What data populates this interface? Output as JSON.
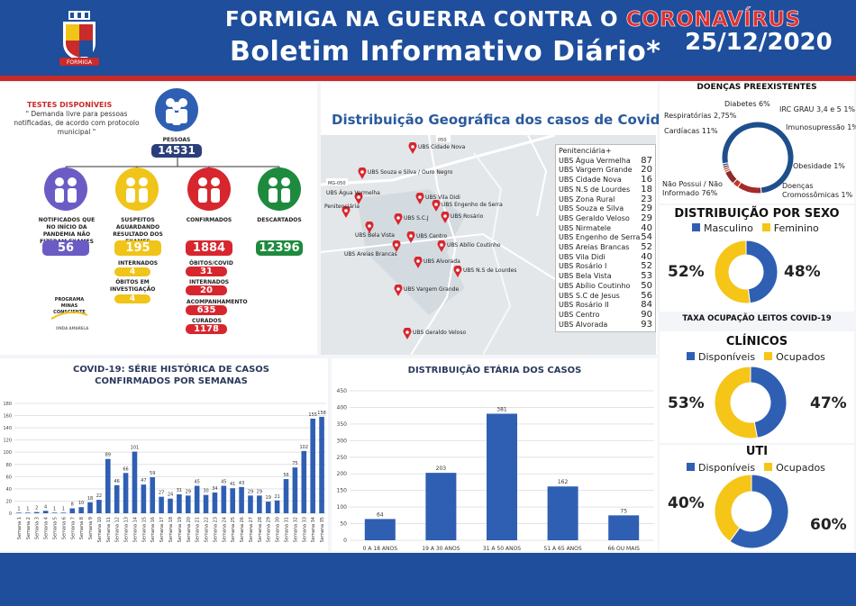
{
  "header": {
    "title_part1": "FORMIGA NA GUERRA CONTRA O ",
    "title_part2": "CORONAVÍRUS",
    "subtitle": "Boletim Informativo Diário*",
    "date": "25/12/2020",
    "crest_text": "FORMIGA"
  },
  "tests": {
    "title": "TESTES DISPONÍVEIS",
    "description": "\" Demanda livre para pessoas notificadas, de acordo com protocolo municipal \""
  },
  "notified": {
    "label": "PESSOAS NOTIFICADAS",
    "value": "14531"
  },
  "groups": [
    {
      "label": "NOTIFICADOS QUE NO INÍCIO DA PANDEMIA NÃO FIZERAM EXAMES",
      "value": "56",
      "color": "#6a5cc4"
    },
    {
      "label": "SUSPEITOS AGUARDANDO RESULTADO DOS EXAMES",
      "value": "195",
      "color": "#f0c419"
    },
    {
      "label": "CONFIRMADOS",
      "value": "1884",
      "color": "#d7262e"
    },
    {
      "label": "DESCARTADOS",
      "value": "12396",
      "color": "#1e8a3e"
    }
  ],
  "suspects_sub": [
    {
      "label": "INTERNADOS",
      "value": "4"
    },
    {
      "label": "ÓBITOS EM INVESTIGAÇÃO",
      "value": "4"
    }
  ],
  "confirmed_sub": [
    {
      "label": "ÓBITOS/COVID",
      "value": "31"
    },
    {
      "label": "INTERNADOS",
      "value": "20"
    },
    {
      "label": "ACOMPANHAMENTO",
      "value": "635"
    },
    {
      "label": "CURADOS",
      "value": "1178"
    }
  ],
  "program": {
    "label": "PROGRAMA MINAS CONSCIENTE",
    "sub": "ONDA AMARELA"
  },
  "geo": {
    "title": "Distribuição Geográfica dos casos de Covid-19",
    "list": [
      {
        "name": "Penitenciária+",
        "value": ""
      },
      {
        "name": "UBS Água Vermelha",
        "value": "87"
      },
      {
        "name": "UBS Vargem Grande",
        "value": "20"
      },
      {
        "name": "UBS Cidade Nova",
        "value": "16"
      },
      {
        "name": "UBS N.S de Lourdes",
        "value": "18"
      },
      {
        "name": "UBS Zona Rural",
        "value": "23"
      },
      {
        "name": "UBS Souza e Silva",
        "value": "29"
      },
      {
        "name": "UBS Geraldo Veloso",
        "value": "29"
      },
      {
        "name": "UBS Nirmatele",
        "value": "40"
      },
      {
        "name": "UBS Engenho de Serra",
        "value": "54"
      },
      {
        "name": "UBS Areias Brancas",
        "value": "52"
      },
      {
        "name": "UBS Vila Didi",
        "value": "40"
      },
      {
        "name": "UBS Rosário I",
        "value": "52"
      },
      {
        "name": "UBS Bela Vista",
        "value": "53"
      },
      {
        "name": "UBS Abílio Coutinho",
        "value": "50"
      },
      {
        "name": "UBS S.C de Jesus",
        "value": "56"
      },
      {
        "name": "UBS Rosário II",
        "value": "84"
      },
      {
        "name": "UBS Centro",
        "value": "90"
      },
      {
        "name": "UBS Alvorada",
        "value": "93"
      }
    ],
    "pins": [
      "UBS Cidade Nova",
      "UBS Souza e Silva / Ouro Negro",
      "UBS Vila Didi",
      "UBS Água Vermelha",
      "UBS Engenho de Serra",
      "Penitenciária",
      "UBS S.C.J",
      "UBS Rosário",
      "UBS Bela Vista",
      "UBS Centro",
      "UBS Areias Brancas",
      "UBS Abílio Coutinho",
      "UBS Alvorada",
      "UBS N.S de Lourdes",
      "UBS Vargem Grande",
      "UBS Geraldo Veloso"
    ],
    "road_labels": [
      "050",
      "MG-050"
    ]
  },
  "chart_data": [
    {
      "type": "bar",
      "title": "COVID-19: SÉRIE HISTÓRICA DE CASOS CONFIRMADOS POR SEMANAS",
      "categories": [
        "Semana 1",
        "Semana 2",
        "Semana 3",
        "Semana 4",
        "Semana 5",
        "Semana 6",
        "Semana 7",
        "Semana 8",
        "Semana 9",
        "Semana 10",
        "Semana 11",
        "Semana 12",
        "Semana 13",
        "Semana 14",
        "Semana 15",
        "Semana 16",
        "Semana 17",
        "Semana 18",
        "Semana 19",
        "Semana 20",
        "Semana 21",
        "Semana 22",
        "Semana 23",
        "Semana 24",
        "Semana 25",
        "Semana 26",
        "Semana 27",
        "Semana 28",
        "Semana 29",
        "Semana 30",
        "Semana 31",
        "Semana 32",
        "Semana 33",
        "Semana 34",
        "Semana 35"
      ],
      "values": [
        1,
        1,
        2,
        4,
        1,
        1,
        8,
        10,
        18,
        22,
        89,
        46,
        66,
        101,
        47,
        59,
        27,
        24,
        31,
        29,
        45,
        30,
        34,
        45,
        41,
        43,
        29,
        29,
        19,
        21,
        56,
        75,
        102,
        155,
        158
      ],
      "ylim": [
        0,
        180
      ],
      "yticks": [
        0,
        20,
        40,
        60,
        80,
        100,
        120,
        140,
        160,
        180
      ],
      "color": "#2f5fb3"
    },
    {
      "type": "bar",
      "title": "DISTRIBUIÇÃO ETÁRIA DOS CASOS",
      "categories": [
        "0 A 18 ANOS",
        "19 A 30 ANOS",
        "31 A 50 ANOS",
        "51 A 65 ANOS",
        "66 OU MAIS"
      ],
      "values": [
        64,
        203,
        381,
        162,
        75
      ],
      "ylim": [
        0,
        450
      ],
      "yticks": [
        0,
        50,
        100,
        150,
        200,
        250,
        300,
        350,
        400,
        450
      ],
      "color": "#2f5fb3"
    },
    {
      "type": "pie",
      "title": "DOENÇAS PREEXISTENTES",
      "labels": [
        "Não Possui / Não Informado",
        "Cardíacas",
        "Respiratórias",
        "Diabetes",
        "IRC GRAU 3,4 e 5",
        "Imunosupressão",
        "Obesidade",
        "Doenças Cromossômicas"
      ],
      "display": [
        "Não Possui / Não Informado 76%",
        "Cardíacas 11%",
        "Respiratórias 2,75%",
        "Diabetes 6%",
        "IRC GRAU 3,4 e 5 1%",
        "Imunosupressão 1%",
        "Obesidade 1%",
        "Doenças Cromossômicas 1%"
      ],
      "values": [
        76,
        11,
        2.75,
        6,
        1,
        1,
        1,
        1
      ],
      "colors": [
        "#1f4e8c",
        "#a52a2a",
        "#c0392b",
        "#8e2b2b",
        "#e74c3c",
        "#c0392b",
        "#2c3e50",
        "#34495e"
      ]
    },
    {
      "type": "pie",
      "title": "DISTRIBUIÇÃO POR SEXO",
      "labels": [
        "Masculino",
        "Feminino"
      ],
      "values": [
        48,
        52
      ],
      "colors": [
        "#2f5fb3",
        "#f5c518"
      ]
    },
    {
      "type": "pie",
      "title": "CLÍNICOS",
      "labels": [
        "Disponíveis",
        "Ocupados"
      ],
      "values": [
        47,
        53
      ],
      "colors": [
        "#2f5fb3",
        "#f5c518"
      ]
    },
    {
      "type": "pie",
      "title": "UTI",
      "labels": [
        "Disponíveis",
        "Ocupados"
      ],
      "values": [
        60,
        40
      ],
      "colors": [
        "#2f5fb3",
        "#f5c518"
      ]
    }
  ],
  "texts": {
    "taxa": "TAXA OCUPAÇÃO LEITOS COVID-19",
    "sex_pct_left": "52%",
    "sex_pct_right": "48%",
    "clin_pct_left": "53%",
    "clin_pct_right": "47%",
    "uti_pct_left": "40%",
    "uti_pct_right": "60%"
  }
}
